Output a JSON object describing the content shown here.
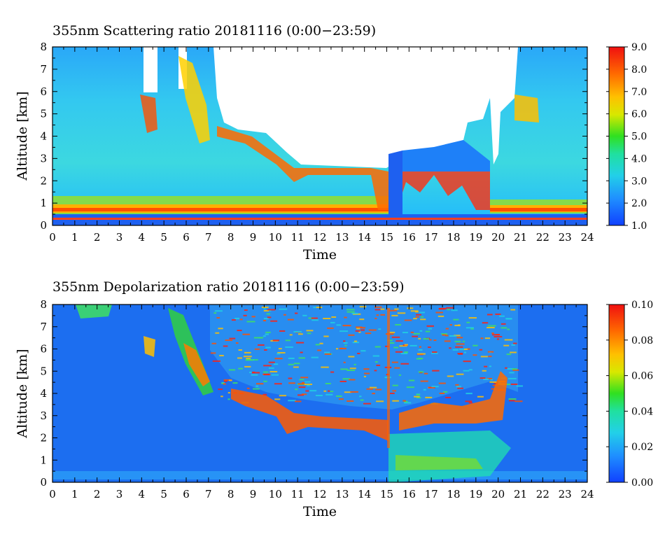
{
  "chart_data": [
    {
      "type": "heatmap",
      "title": "355nm Scattering ratio  20181116 (0:00−23:59)",
      "xlabel": "Time",
      "ylabel": "Altitude [km]",
      "xlim": [
        0,
        24
      ],
      "ylim": [
        0,
        8
      ],
      "x_ticks": [
        "0",
        "1",
        "2",
        "3",
        "4",
        "5",
        "6",
        "7",
        "8",
        "9",
        "10",
        "11",
        "12",
        "13",
        "14",
        "15",
        "16",
        "17",
        "18",
        "19",
        "20",
        "21",
        "22",
        "23",
        "24"
      ],
      "y_ticks": [
        "0",
        "1",
        "2",
        "3",
        "4",
        "5",
        "6",
        "7",
        "8"
      ],
      "colorbar": {
        "min": 1.0,
        "max": 9.0,
        "ticks": [
          "1.0",
          "2.0",
          "3.0",
          "4.0",
          "5.0",
          "6.0",
          "7.0",
          "8.0",
          "9.0"
        ]
      },
      "grid": false
    },
    {
      "type": "heatmap",
      "title": "355nm Depolarization ratio  20181116 (0:00−23:59)",
      "xlabel": "Time",
      "ylabel": "Altitude [km]",
      "xlim": [
        0,
        24
      ],
      "ylim": [
        0,
        8
      ],
      "x_ticks": [
        "0",
        "1",
        "2",
        "3",
        "4",
        "5",
        "6",
        "7",
        "8",
        "9",
        "10",
        "11",
        "12",
        "13",
        "14",
        "15",
        "16",
        "17",
        "18",
        "19",
        "20",
        "21",
        "22",
        "23",
        "24"
      ],
      "y_ticks": [
        "0",
        "1",
        "2",
        "3",
        "4",
        "5",
        "6",
        "7",
        "8"
      ],
      "colorbar": {
        "min": 0.0,
        "max": 0.1,
        "ticks": [
          "0.00",
          "0.02",
          "0.04",
          "0.06",
          "0.08",
          "0.10"
        ]
      },
      "grid": false
    }
  ]
}
